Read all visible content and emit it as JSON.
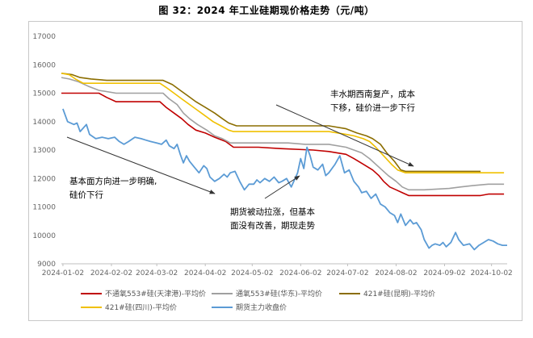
{
  "title": "图 32：2024 年工业硅期现价格走势（元/吨）",
  "chart_data": {
    "type": "line",
    "ylim": [
      9000,
      17000
    ],
    "yticks": [
      9000,
      10000,
      11000,
      12000,
      13000,
      14000,
      15000,
      16000,
      17000
    ],
    "xlim": [
      "2024-01-01",
      "2024-10-12"
    ],
    "xticks": [
      "2024-01-02",
      "2024-02-02",
      "2024-03-02",
      "2024-04-02",
      "2024-05-02",
      "2024-06-02",
      "2024-07-02",
      "2024-08-02",
      "2024-09-02",
      "2024-10-02"
    ],
    "grid": false,
    "legend_position": "bottom",
    "series": [
      {
        "name": "不通氧553#硅(天津港)-平均价",
        "color": "#c00000",
        "points": [
          [
            "2024-01-01",
            15000
          ],
          [
            "2024-01-25",
            15000
          ],
          [
            "2024-01-30",
            14850
          ],
          [
            "2024-02-05",
            14700
          ],
          [
            "2024-03-04",
            14700
          ],
          [
            "2024-03-08",
            14500
          ],
          [
            "2024-03-13",
            14300
          ],
          [
            "2024-03-18",
            14100
          ],
          [
            "2024-03-22",
            13900
          ],
          [
            "2024-03-27",
            13700
          ],
          [
            "2024-04-02",
            13600
          ],
          [
            "2024-04-08",
            13450
          ],
          [
            "2024-04-15",
            13300
          ],
          [
            "2024-04-20",
            13100
          ],
          [
            "2024-05-06",
            13100
          ],
          [
            "2024-05-20",
            13050
          ],
          [
            "2024-06-10",
            13000
          ],
          [
            "2024-06-20",
            12950
          ],
          [
            "2024-07-01",
            12850
          ],
          [
            "2024-07-06",
            12700
          ],
          [
            "2024-07-12",
            12500
          ],
          [
            "2024-07-18",
            12300
          ],
          [
            "2024-07-22",
            12100
          ],
          [
            "2024-07-25",
            11900
          ],
          [
            "2024-07-29",
            11700
          ],
          [
            "2024-08-02",
            11600
          ],
          [
            "2024-08-06",
            11500
          ],
          [
            "2024-08-10",
            11400
          ],
          [
            "2024-09-25",
            11400
          ],
          [
            "2024-09-30",
            11450
          ],
          [
            "2024-10-10",
            11450
          ]
        ]
      },
      {
        "name": "通氧553#硅(华东)-平均价",
        "color": "#a0a0a0",
        "points": [
          [
            "2024-01-01",
            15550
          ],
          [
            "2024-01-06",
            15500
          ],
          [
            "2024-01-12",
            15400
          ],
          [
            "2024-01-18",
            15250
          ],
          [
            "2024-01-25",
            15100
          ],
          [
            "2024-02-05",
            15000
          ],
          [
            "2024-03-06",
            15000
          ],
          [
            "2024-03-10",
            14800
          ],
          [
            "2024-03-15",
            14600
          ],
          [
            "2024-03-19",
            14300
          ],
          [
            "2024-03-23",
            14100
          ],
          [
            "2024-03-28",
            13900
          ],
          [
            "2024-04-03",
            13700
          ],
          [
            "2024-04-08",
            13500
          ],
          [
            "2024-04-13",
            13400
          ],
          [
            "2024-04-18",
            13250
          ],
          [
            "2024-05-06",
            13250
          ],
          [
            "2024-05-25",
            13250
          ],
          [
            "2024-06-05",
            13200
          ],
          [
            "2024-06-20",
            13200
          ],
          [
            "2024-07-01",
            13100
          ],
          [
            "2024-07-06",
            13000
          ],
          [
            "2024-07-11",
            12900
          ],
          [
            "2024-07-16",
            12700
          ],
          [
            "2024-07-22",
            12400
          ],
          [
            "2024-07-28",
            12100
          ],
          [
            "2024-08-02",
            11900
          ],
          [
            "2024-08-06",
            11700
          ],
          [
            "2024-08-10",
            11600
          ],
          [
            "2024-08-20",
            11600
          ],
          [
            "2024-09-05",
            11650
          ],
          [
            "2024-09-12",
            11700
          ],
          [
            "2024-09-20",
            11750
          ],
          [
            "2024-09-30",
            11800
          ],
          [
            "2024-10-10",
            11800
          ]
        ]
      },
      {
        "name": "421#硅(昆明)-平均价",
        "color": "#8b6d00",
        "points": [
          [
            "2024-01-01",
            15700
          ],
          [
            "2024-01-08",
            15650
          ],
          [
            "2024-01-13",
            15550
          ],
          [
            "2024-01-20",
            15500
          ],
          [
            "2024-01-30",
            15450
          ],
          [
            "2024-03-06",
            15450
          ],
          [
            "2024-03-12",
            15300
          ],
          [
            "2024-03-17",
            15100
          ],
          [
            "2024-03-22",
            14900
          ],
          [
            "2024-03-27",
            14700
          ],
          [
            "2024-04-02",
            14500
          ],
          [
            "2024-04-08",
            14300
          ],
          [
            "2024-04-13",
            14100
          ],
          [
            "2024-04-17",
            13950
          ],
          [
            "2024-04-22",
            13850
          ],
          [
            "2024-05-20",
            13850
          ],
          [
            "2024-06-20",
            13850
          ],
          [
            "2024-07-01",
            13750
          ],
          [
            "2024-07-08",
            13600
          ],
          [
            "2024-07-14",
            13500
          ],
          [
            "2024-07-18",
            13400
          ],
          [
            "2024-07-23",
            13200
          ],
          [
            "2024-07-27",
            12900
          ],
          [
            "2024-08-01",
            12600
          ],
          [
            "2024-08-05",
            12300
          ],
          [
            "2024-08-08",
            12250
          ],
          [
            "2024-09-25",
            12250
          ]
        ]
      },
      {
        "name": "421#硅(四川)-平均价",
        "color": "#f0c000",
        "points": [
          [
            "2024-01-01",
            15700
          ],
          [
            "2024-01-06",
            15650
          ],
          [
            "2024-01-10",
            15500
          ],
          [
            "2024-01-15",
            15350
          ],
          [
            "2024-02-05",
            15350
          ],
          [
            "2024-03-04",
            15350
          ],
          [
            "2024-03-08",
            15200
          ],
          [
            "2024-03-13",
            15000
          ],
          [
            "2024-03-18",
            14800
          ],
          [
            "2024-03-23",
            14600
          ],
          [
            "2024-03-28",
            14400
          ],
          [
            "2024-04-02",
            14200
          ],
          [
            "2024-04-07",
            14000
          ],
          [
            "2024-04-12",
            13850
          ],
          [
            "2024-04-17",
            13700
          ],
          [
            "2024-04-20",
            13650
          ],
          [
            "2024-05-20",
            13650
          ],
          [
            "2024-06-20",
            13650
          ],
          [
            "2024-07-01",
            13550
          ],
          [
            "2024-07-06",
            13500
          ],
          [
            "2024-07-12",
            13400
          ],
          [
            "2024-07-16",
            13300
          ],
          [
            "2024-07-20",
            13100
          ],
          [
            "2024-07-25",
            12800
          ],
          [
            "2024-07-30",
            12500
          ],
          [
            "2024-08-03",
            12300
          ],
          [
            "2024-08-08",
            12200
          ],
          [
            "2024-10-10",
            12200
          ]
        ]
      },
      {
        "name": "期货主力收盘价",
        "color": "#5b9bd5",
        "points": [
          [
            "2024-01-02",
            14450
          ],
          [
            "2024-01-05",
            14000
          ],
          [
            "2024-01-09",
            13900
          ],
          [
            "2024-01-11",
            13950
          ],
          [
            "2024-01-13",
            13650
          ],
          [
            "2024-01-17",
            13900
          ],
          [
            "2024-01-19",
            13550
          ],
          [
            "2024-01-23",
            13400
          ],
          [
            "2024-01-27",
            13450
          ],
          [
            "2024-01-31",
            13400
          ],
          [
            "2024-02-04",
            13450
          ],
          [
            "2024-02-07",
            13300
          ],
          [
            "2024-02-10",
            13200
          ],
          [
            "2024-02-13",
            13300
          ],
          [
            "2024-02-17",
            13450
          ],
          [
            "2024-02-21",
            13400
          ],
          [
            "2024-02-24",
            13350
          ],
          [
            "2024-02-27",
            13300
          ],
          [
            "2024-03-02",
            13250
          ],
          [
            "2024-03-05",
            13200
          ],
          [
            "2024-03-08",
            13350
          ],
          [
            "2024-03-10",
            13150
          ],
          [
            "2024-03-13",
            13050
          ],
          [
            "2024-03-15",
            13200
          ],
          [
            "2024-03-17",
            12850
          ],
          [
            "2024-03-19",
            12550
          ],
          [
            "2024-03-21",
            12800
          ],
          [
            "2024-03-23",
            12600
          ],
          [
            "2024-03-26",
            12400
          ],
          [
            "2024-03-29",
            12200
          ],
          [
            "2024-04-01",
            12450
          ],
          [
            "2024-04-03",
            12350
          ],
          [
            "2024-04-05",
            12050
          ],
          [
            "2024-04-08",
            11900
          ],
          [
            "2024-04-11",
            12000
          ],
          [
            "2024-04-14",
            12150
          ],
          [
            "2024-04-16",
            12050
          ],
          [
            "2024-04-18",
            12200
          ],
          [
            "2024-04-21",
            12250
          ],
          [
            "2024-04-24",
            11900
          ],
          [
            "2024-04-27",
            11600
          ],
          [
            "2024-04-30",
            11800
          ],
          [
            "2024-05-03",
            11800
          ],
          [
            "2024-05-05",
            11950
          ],
          [
            "2024-05-07",
            11850
          ],
          [
            "2024-05-10",
            12000
          ],
          [
            "2024-05-13",
            11900
          ],
          [
            "2024-05-16",
            12050
          ],
          [
            "2024-05-19",
            11850
          ],
          [
            "2024-05-21",
            11900
          ],
          [
            "2024-05-24",
            12000
          ],
          [
            "2024-05-27",
            11700
          ],
          [
            "2024-05-29",
            11950
          ],
          [
            "2024-05-31",
            12200
          ],
          [
            "2024-06-02",
            12700
          ],
          [
            "2024-06-04",
            12350
          ],
          [
            "2024-06-06",
            13100
          ],
          [
            "2024-06-08",
            12800
          ],
          [
            "2024-06-10",
            12400
          ],
          [
            "2024-06-13",
            12300
          ],
          [
            "2024-06-16",
            12500
          ],
          [
            "2024-06-18",
            12100
          ],
          [
            "2024-06-20",
            12200
          ],
          [
            "2024-06-24",
            12500
          ],
          [
            "2024-06-27",
            12800
          ],
          [
            "2024-06-30",
            12200
          ],
          [
            "2024-07-03",
            12300
          ],
          [
            "2024-07-06",
            11900
          ],
          [
            "2024-07-09",
            11700
          ],
          [
            "2024-07-11",
            11500
          ],
          [
            "2024-07-14",
            11550
          ],
          [
            "2024-07-17",
            11300
          ],
          [
            "2024-07-20",
            11450
          ],
          [
            "2024-07-23",
            11100
          ],
          [
            "2024-07-26",
            11000
          ],
          [
            "2024-07-29",
            10800
          ],
          [
            "2024-08-01",
            10700
          ],
          [
            "2024-08-03",
            10450
          ],
          [
            "2024-08-05",
            10750
          ],
          [
            "2024-08-08",
            10350
          ],
          [
            "2024-08-11",
            10550
          ],
          [
            "2024-08-13",
            10400
          ],
          [
            "2024-08-15",
            10450
          ],
          [
            "2024-08-18",
            10200
          ],
          [
            "2024-08-20",
            9850
          ],
          [
            "2024-08-23",
            9550
          ],
          [
            "2024-08-25",
            9650
          ],
          [
            "2024-08-27",
            9700
          ],
          [
            "2024-08-30",
            9650
          ],
          [
            "2024-09-01",
            9750
          ],
          [
            "2024-09-03",
            9600
          ],
          [
            "2024-09-06",
            9750
          ],
          [
            "2024-09-09",
            10100
          ],
          [
            "2024-09-11",
            9850
          ],
          [
            "2024-09-14",
            9650
          ],
          [
            "2024-09-18",
            9700
          ],
          [
            "2024-09-21",
            9500
          ],
          [
            "2024-09-24",
            9650
          ],
          [
            "2024-09-27",
            9750
          ],
          [
            "2024-09-30",
            9850
          ],
          [
            "2024-10-03",
            9800
          ],
          [
            "2024-10-06",
            9700
          ],
          [
            "2024-10-09",
            9650
          ],
          [
            "2024-10-12",
            9650
          ]
        ]
      }
    ],
    "annotations": [
      {
        "lines": [
          "丰水期西南复产，成本",
          "下移，硅价进一步下行"
        ]
      },
      {
        "lines": [
          "基本面方向进一步明确,",
          "硅价下行"
        ]
      },
      {
        "lines": [
          "期货被动拉涨，但基本",
          "面没有改善，期现走势"
        ]
      }
    ]
  }
}
